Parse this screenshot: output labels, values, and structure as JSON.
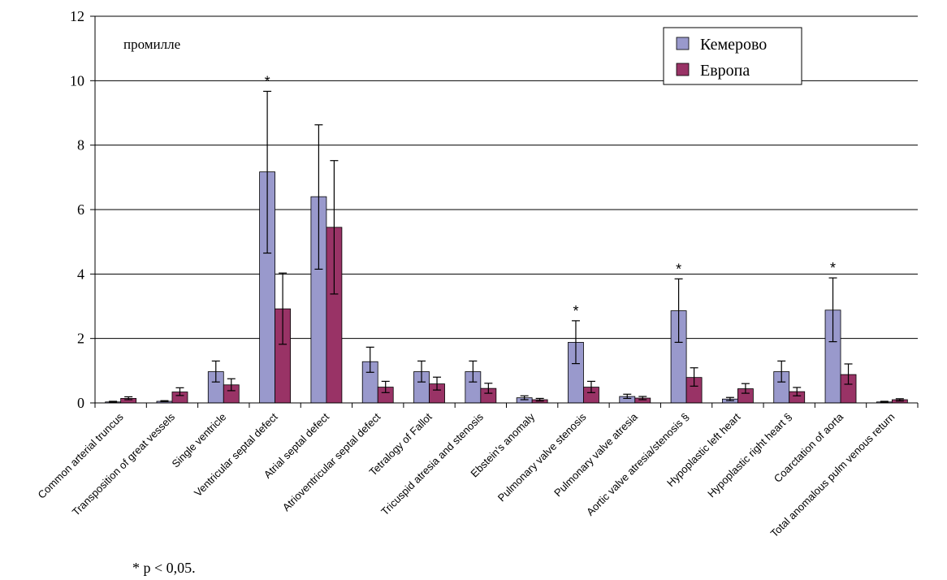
{
  "chart_data": {
    "type": "bar",
    "unit_label": "промилле",
    "ylim": [
      0,
      12
    ],
    "yticks": [
      0,
      2,
      4,
      6,
      8,
      10,
      12
    ],
    "grid": true,
    "legend_position": "top-right",
    "categories": [
      "Common arterial truncus",
      "Transposition of great vessels",
      "Single ventricle",
      "Ventricular septal defect",
      "Atrial septal defect",
      "Atrioventricular septal defect",
      "Tetralogy of Fallot",
      "Tricuspid atresia and stenosis",
      "Ebstein's anomaly",
      "Pulmonary valve stenosis",
      "Pulmonary valve atresia",
      "Aortic valve atresia/stenosis §",
      "Hypoplastic left heart",
      "Hypoplastic right heart §",
      "Coarctation of aorta",
      "Total anomalous pulm venous return"
    ],
    "series": [
      {
        "name": "Кемерово",
        "color": "#9999cc",
        "values": [
          0.03,
          0.05,
          0.97,
          7.17,
          6.4,
          1.28,
          0.97,
          0.97,
          0.16,
          1.88,
          0.2,
          2.86,
          0.12,
          0.97,
          2.88,
          0.03
        ],
        "error_lower": [
          0.02,
          0.04,
          0.65,
          4.65,
          4.15,
          0.95,
          0.65,
          0.65,
          0.1,
          1.22,
          0.14,
          1.88,
          0.07,
          0.65,
          1.9,
          0.02
        ],
        "error_upper": [
          0.05,
          0.07,
          1.3,
          9.67,
          8.63,
          1.73,
          1.3,
          1.3,
          0.22,
          2.55,
          0.27,
          3.85,
          0.17,
          1.3,
          3.88,
          0.05
        ]
      },
      {
        "name": "Европа",
        "color": "#993366",
        "values": [
          0.14,
          0.34,
          0.56,
          2.92,
          5.45,
          0.49,
          0.59,
          0.45,
          0.1,
          0.49,
          0.15,
          0.79,
          0.44,
          0.35,
          0.88,
          0.1
        ],
        "error_lower": [
          0.1,
          0.23,
          0.38,
          1.82,
          3.38,
          0.32,
          0.4,
          0.3,
          0.06,
          0.32,
          0.1,
          0.52,
          0.3,
          0.22,
          0.58,
          0.06
        ],
        "error_upper": [
          0.19,
          0.47,
          0.75,
          4.03,
          7.52,
          0.67,
          0.8,
          0.61,
          0.14,
          0.67,
          0.2,
          1.09,
          0.6,
          0.48,
          1.21,
          0.13
        ]
      }
    ],
    "significant_categories": [
      3,
      9,
      11,
      14
    ],
    "significance_marker": "*",
    "footnote": "* p < 0,05."
  }
}
